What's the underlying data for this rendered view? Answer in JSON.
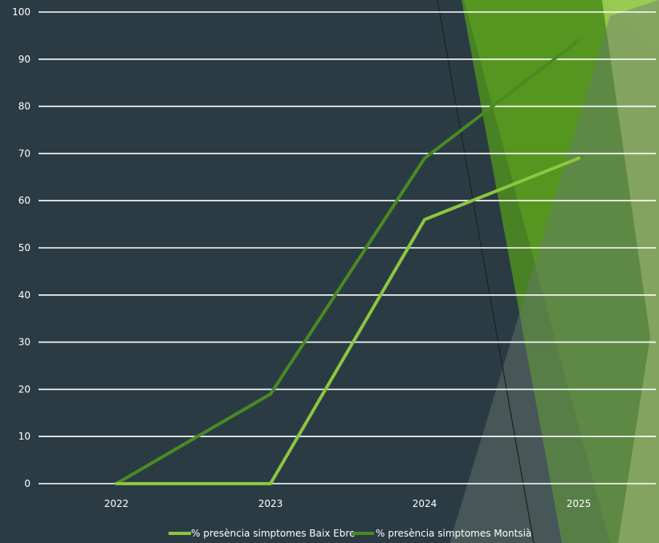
{
  "colors": {
    "background": "#2b3b44",
    "gridline": "#ffffff",
    "series_baix_ebre": "#8dc63f",
    "series_montsia": "#4a8a22",
    "decor_green_bright": "#7fb82a",
    "decor_green_mid": "#4d8f1f",
    "decor_green_light": "#9ccc55",
    "decor_gray": "#6b7a70"
  },
  "chart_data": {
    "type": "line",
    "categories": [
      "2022",
      "2023",
      "2024",
      "2025"
    ],
    "series": [
      {
        "name": "% presència simptomes  Baix Ebre",
        "values": [
          0,
          0,
          56,
          69
        ]
      },
      {
        "name": "% presència simptomes  Montsià",
        "values": [
          0,
          19,
          69,
          94
        ]
      }
    ],
    "yticks": [
      "0",
      "10",
      "20",
      "30",
      "40",
      "50",
      "60",
      "70",
      "80",
      "90",
      "100"
    ],
    "ylim": [
      0,
      100
    ],
    "grid": true,
    "legend_position": "bottom"
  }
}
